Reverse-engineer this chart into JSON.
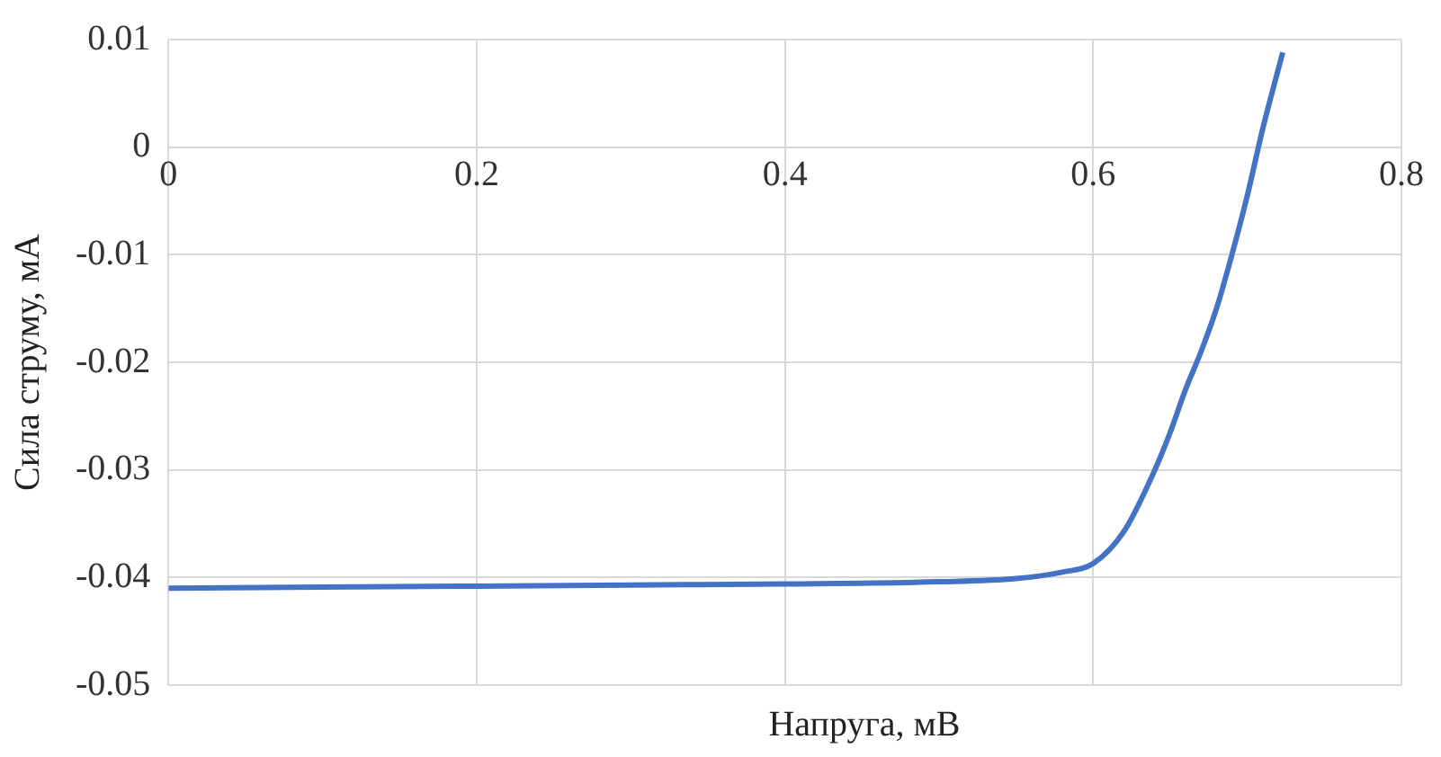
{
  "chart_data": {
    "type": "line",
    "xlabel": "Напруга, мВ",
    "ylabel": "Сила струму, мА",
    "xlim": [
      0,
      0.8
    ],
    "xticks": [
      0,
      {
        "value": 0.2,
        "label": "0.2"
      },
      {
        "value": 0.4,
        "label": "0.4"
      },
      {
        "value": 0.6,
        "label": "0.6"
      },
      {
        "value": 0.8,
        "label": "0.8"
      }
    ],
    "ylim": [
      -0.05,
      0.01
    ],
    "yticks": [
      -0.05,
      -0.04,
      -0.03,
      -0.02,
      -0.01,
      0,
      0.01
    ],
    "grid": true,
    "legend": false,
    "marker": "none",
    "line_style": "solid",
    "series": [
      {
        "color": "#4472c4",
        "x": [
          0,
          0.1,
          0.2,
          0.3,
          0.4,
          0.5,
          0.55,
          0.58,
          0.6,
          0.62,
          0.64,
          0.65,
          0.66,
          0.67,
          0.68,
          0.69,
          0.7,
          0.71,
          0.723
        ],
        "values": [
          -0.041,
          -0.0409,
          -0.0408,
          -0.0407,
          -0.0406,
          -0.0404,
          -0.0401,
          -0.0395,
          -0.0387,
          -0.0357,
          -0.03,
          -0.0265,
          -0.0225,
          -0.019,
          -0.015,
          -0.01,
          -0.0045,
          0.0017,
          0.0088
        ]
      }
    ]
  }
}
